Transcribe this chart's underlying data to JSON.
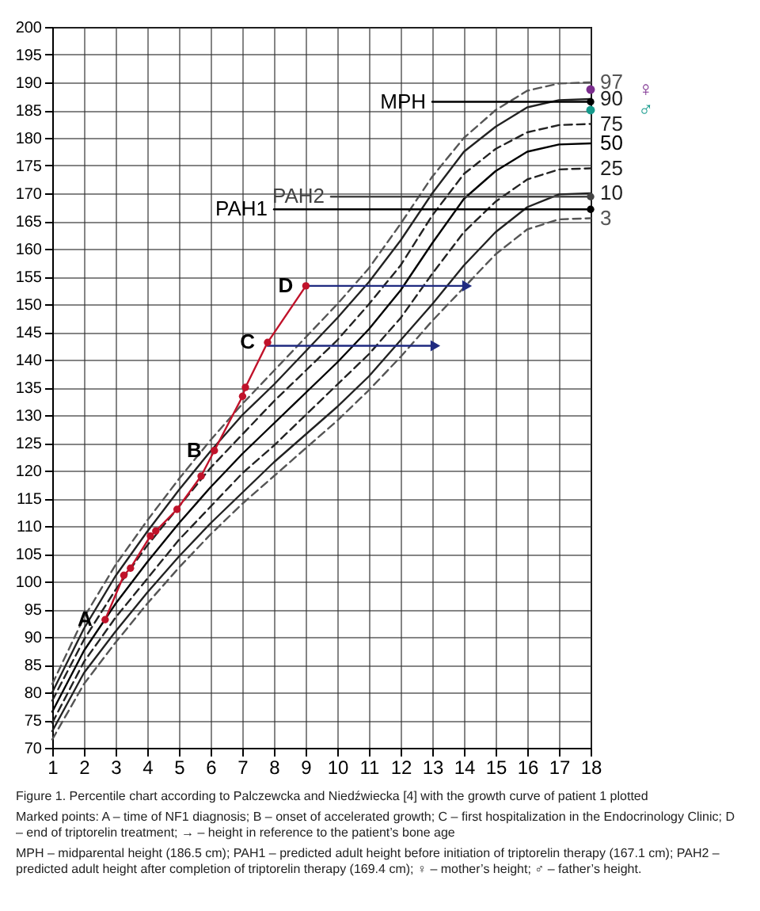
{
  "chart_data": {
    "type": "line",
    "x": [
      1,
      2,
      3,
      4,
      5,
      6,
      7,
      8,
      9,
      10,
      11,
      12,
      13,
      14,
      15,
      16,
      17,
      18
    ],
    "xlim": [
      1,
      18
    ],
    "xticks": [
      1,
      2,
      3,
      4,
      5,
      6,
      7,
      8,
      9,
      10,
      11,
      12,
      13,
      14,
      15,
      16,
      17,
      18
    ],
    "ylim": [
      70,
      200
    ],
    "yticks": [
      70,
      75,
      80,
      85,
      90,
      95,
      100,
      105,
      110,
      115,
      120,
      125,
      130,
      135,
      140,
      145,
      150,
      155,
      160,
      165,
      170,
      175,
      180,
      185,
      190,
      195,
      200
    ],
    "grid": true,
    "series": [
      {
        "name": "97",
        "color": "#555555",
        "line_style": "dashed",
        "values": [
          81.5,
          93.5,
          103,
          111,
          118.5,
          125.5,
          132,
          138,
          144,
          150,
          156.5,
          164.5,
          173,
          180,
          185,
          188.5,
          189.8,
          190
        ]
      },
      {
        "name": "90",
        "color": "#222222",
        "line_style": "solid",
        "values": [
          80,
          91.5,
          101,
          109,
          116.5,
          123.5,
          130,
          135.5,
          141.5,
          147.5,
          154,
          161.5,
          170,
          177.5,
          182,
          185.5,
          186.8,
          187
        ]
      },
      {
        "name": "75",
        "color": "#222222",
        "line_style": "dashed",
        "values": [
          78.5,
          89.5,
          98.5,
          106.5,
          113.5,
          120.5,
          126.5,
          132.5,
          138,
          143.5,
          150,
          157,
          166,
          173.5,
          178,
          181,
          182.3,
          182.5
        ]
      },
      {
        "name": "50",
        "color": "#000000",
        "line_style": "solid",
        "values": [
          76.5,
          87.5,
          96,
          103.5,
          110.5,
          117,
          123,
          128.5,
          134,
          139.5,
          145.5,
          152.5,
          161,
          169,
          174,
          177.5,
          178.8,
          179
        ]
      },
      {
        "name": "25",
        "color": "#222222",
        "line_style": "dashed",
        "values": [
          74.5,
          85.5,
          93.5,
          100.5,
          107.5,
          113.5,
          119.5,
          124.5,
          130,
          135.5,
          141,
          147.5,
          155.5,
          163,
          168.5,
          172.5,
          174.3,
          174.5
        ]
      },
      {
        "name": "10",
        "color": "#222222",
        "line_style": "solid",
        "values": [
          73,
          83.5,
          91,
          98,
          104.5,
          110.5,
          116,
          121.5,
          126.5,
          131.5,
          137,
          143.5,
          150,
          157,
          163,
          167.5,
          169.8,
          170
        ]
      },
      {
        "name": "3",
        "color": "#555555",
        "line_style": "dashed",
        "values": [
          71.5,
          81.5,
          89,
          96,
          102.5,
          108.5,
          114,
          119,
          124,
          129,
          134.5,
          140.5,
          147,
          153,
          159,
          163.5,
          165.3,
          165.5
        ]
      },
      {
        "name": "MPH",
        "color": "#000000",
        "line_style": "solid",
        "marker": "circle",
        "x": [
          13,
          18
        ],
        "values": [
          186.5,
          186.5
        ]
      },
      {
        "name": "PAH2",
        "color": "#444444",
        "line_style": "solid",
        "marker": "circle",
        "x": [
          9.8,
          18
        ],
        "values": [
          169.4,
          169.4
        ]
      },
      {
        "name": "PAH1",
        "color": "#000000",
        "line_style": "solid",
        "marker": "circle",
        "x": [
          8,
          18
        ],
        "values": [
          167.1,
          167.1
        ]
      },
      {
        "color": "#1f2a80",
        "line_style": "solid",
        "marker": "triangle",
        "x": [
          7.8,
          13.1
        ],
        "values": [
          142.5,
          142.5
        ]
      },
      {
        "color": "#1f2a80",
        "line_style": "solid",
        "marker": "triangle",
        "x": [
          9.0,
          14.1
        ],
        "values": [
          153.3,
          153.3
        ]
      },
      {
        "color": "#c0122a",
        "line_style": "solid",
        "marker": "circle",
        "x": [
          2.67,
          3.26,
          3.47,
          4.1,
          4.27,
          4.94,
          5.7,
          6.12,
          7.01,
          7.1,
          7.8,
          9.01
        ],
        "values": [
          93.1,
          101.1,
          102.4,
          108.2,
          109.1,
          113,
          119,
          123.6,
          133.4,
          135,
          143.1,
          153.3
        ]
      },
      {
        "name": "♀",
        "type": "scatter",
        "color": "#7b2d8e",
        "marker": "circle",
        "x": [
          18
        ],
        "values": [
          188.7
        ]
      },
      {
        "name": "♂",
        "type": "scatter",
        "color": "#159a8c",
        "marker": "circle",
        "x": [
          18
        ],
        "values": [
          185
        ]
      }
    ],
    "annotations": [
      {
        "text": "A",
        "x": 2.67,
        "y": 93.1
      },
      {
        "text": "B",
        "x": 6.12,
        "y": 123.6
      },
      {
        "text": "C",
        "x": 7.8,
        "y": 143.1
      },
      {
        "text": "D",
        "x": 9.01,
        "y": 153.3
      },
      "Figure 1. Percentile chart according to Palczewcka and Niedźwiecka [4] with the growth curve of patient 1 plotted",
      "Marked points: A – time of NF1 diagnosis; B – onset of accelerated growth; C – first hospitalization in the Endocrinology Clinic; D – end of triptorelin treatment; → – height in reference to the patient’s bone age",
      "MPH – midparental height (186.5 cm); PAH1 – predicted adult height before initiation of triptorelin therapy (167.1 cm); PAH2 – predicted adult height after completion of triptorelin therapy (169.4 cm); ♀ – mother’s height; ♂ – father’s height."
    ]
  }
}
